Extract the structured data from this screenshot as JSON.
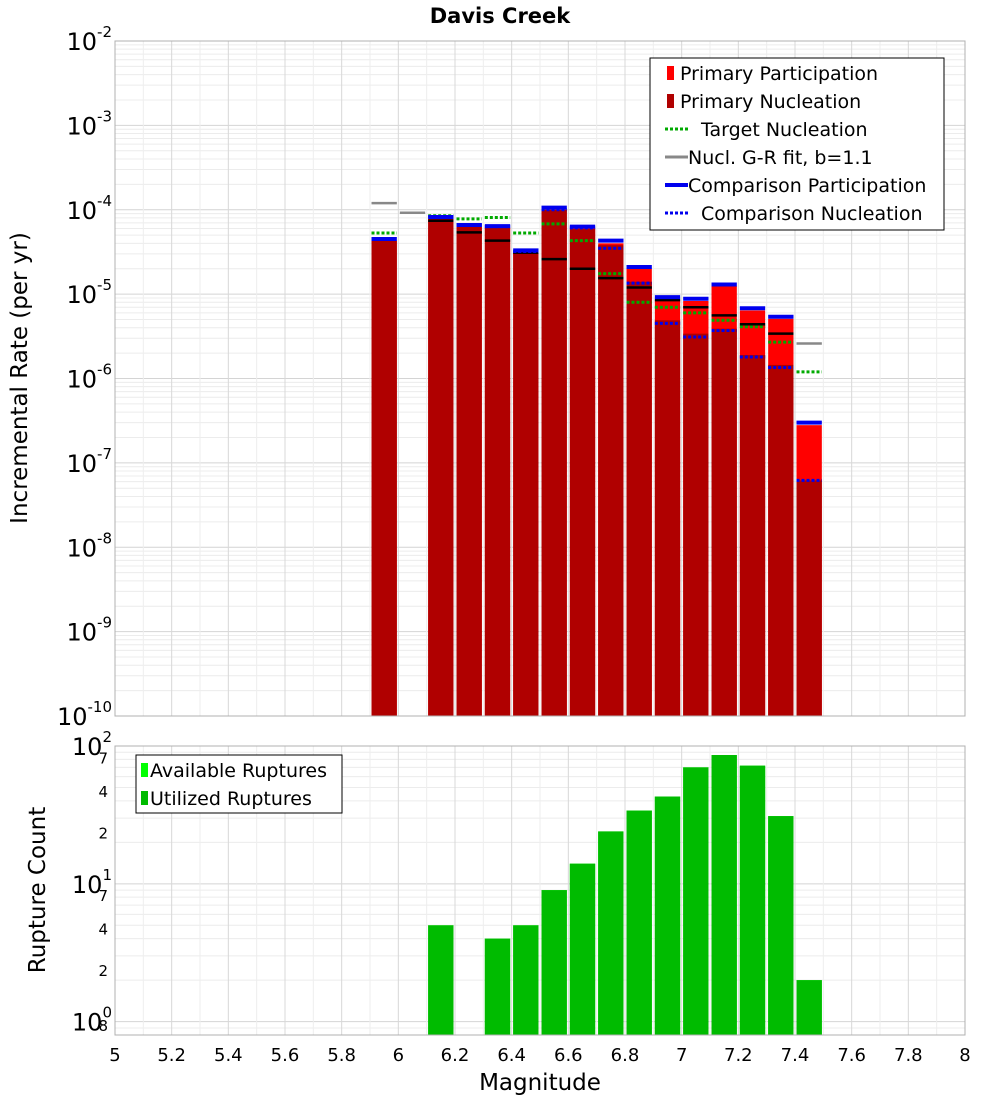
{
  "chart_data": [
    {
      "type": "bar",
      "title": "Davis Creek",
      "xlabel": "Magnitude",
      "ylabel": "Incremental Rate (per yr)",
      "x_scale": "linear",
      "y_scale": "log",
      "xlim": [
        5,
        8
      ],
      "ylim": [
        1e-10,
        0.01
      ],
      "grid": true,
      "legend_position": "top-right",
      "x_ticks": [
        "5",
        "5.2",
        "5.4",
        "5.6",
        "5.8",
        "6",
        "6.2",
        "6.4",
        "6.6",
        "6.8",
        "7",
        "7.2",
        "7.4",
        "7.6",
        "7.8",
        "8"
      ],
      "y_ticks": [
        {
          "base": "10",
          "exp": "-2"
        },
        {
          "base": "10",
          "exp": "-3"
        },
        {
          "base": "10",
          "exp": "-4"
        },
        {
          "base": "10",
          "exp": "-5"
        },
        {
          "base": "10",
          "exp": "-6"
        },
        {
          "base": "10",
          "exp": "-7"
        },
        {
          "base": "10",
          "exp": "-8"
        },
        {
          "base": "10",
          "exp": "-9"
        },
        {
          "base": "10",
          "exp": "-10"
        }
      ],
      "bin_width": 0.1,
      "series": [
        {
          "name": "Primary Participation",
          "style": "bar",
          "color": "#ff0000",
          "x": [
            5.95,
            6.15,
            6.25,
            6.35,
            6.45,
            6.55,
            6.65,
            6.75,
            6.85,
            6.95,
            7.05,
            7.15,
            7.25,
            7.35,
            7.45
          ],
          "values": [
            4.3e-05,
            7.8e-05,
            6.3e-05,
            6.1e-05,
            3.1e-05,
            0.0001,
            6e-05,
            4e-05,
            2e-05,
            8.6e-06,
            8.3e-06,
            1.25e-05,
            6.4e-06,
            5.1e-06,
            2.8e-07
          ]
        },
        {
          "name": "Primary Nucleation",
          "style": "bar",
          "color": "#b00000",
          "x": [
            5.95,
            6.15,
            6.25,
            6.35,
            6.45,
            6.55,
            6.65,
            6.75,
            6.85,
            6.95,
            7.05,
            7.15,
            7.25,
            7.35,
            7.45
          ],
          "values": [
            4.3e-05,
            7.8e-05,
            6.3e-05,
            6.1e-05,
            3.1e-05,
            0.0001,
            5.9e-05,
            3.8e-05,
            1.4e-05,
            4.9e-06,
            3.4e-06,
            3.9e-06,
            1.9e-06,
            1.45e-06,
            6.2e-08
          ]
        },
        {
          "name": "Target Nucleation",
          "style": "dotted",
          "color": "#00aa00",
          "x": [
            5.95,
            6.15,
            6.25,
            6.35,
            6.45,
            6.55,
            6.65,
            6.75,
            6.85,
            6.95,
            7.05,
            7.15,
            7.25,
            7.35,
            7.45
          ],
          "values": [
            5.3e-05,
            8.5e-05,
            7.8e-05,
            8.1e-05,
            5.3e-05,
            6.8e-05,
            4.3e-05,
            1.75e-05,
            8e-06,
            7e-06,
            6e-06,
            4.9e-06,
            4.1e-06,
            2.7e-06,
            1.2e-06
          ]
        },
        {
          "name": "Nucl. G-R fit, b=1.1",
          "style": "solid",
          "color": "#888888",
          "x": [
            5.95,
            6.05
          ],
          "values": [
            0.00012,
            9.2e-05
          ]
        },
        {
          "name": "Nucl. G-R fit, b=1.1",
          "style": "solid",
          "color": "#000000",
          "x": [
            6.15,
            6.25,
            6.35,
            6.45,
            6.55,
            6.65,
            6.75,
            6.85,
            6.95,
            7.05,
            7.15,
            7.25,
            7.35
          ],
          "values": [
            7.4e-05,
            5.4e-05,
            4.3e-05,
            3.1e-05,
            2.6e-05,
            2e-05,
            1.55e-05,
            1.2e-05,
            8.5e-06,
            7e-06,
            5.6e-06,
            4.4e-06,
            3.4e-06
          ]
        },
        {
          "name": "Nucl. G-R fit, b=1.1",
          "style": "solid",
          "color": "#888888",
          "x": [
            7.45
          ],
          "values": [
            2.6e-06
          ]
        },
        {
          "name": "Comparison Participation",
          "style": "solid",
          "color": "#0000ee",
          "x": [
            5.95,
            6.15,
            6.25,
            6.35,
            6.45,
            6.55,
            6.65,
            6.75,
            6.85,
            6.95,
            7.05,
            7.15,
            7.25,
            7.35,
            7.45
          ],
          "values": [
            4.5e-05,
            8.2e-05,
            6.6e-05,
            6.4e-05,
            3.3e-05,
            0.000106,
            6.3e-05,
            4.3e-05,
            2.1e-05,
            9.2e-06,
            8.8e-06,
            1.3e-05,
            6.8e-06,
            5.4e-06,
            3e-07
          ]
        },
        {
          "name": "Comparison Nucleation",
          "style": "dotted",
          "color": "#0000ee",
          "x": [
            6.15,
            6.25,
            6.35,
            6.45,
            6.55,
            6.65,
            6.75,
            6.85,
            6.95,
            7.05,
            7.15,
            7.25,
            7.35,
            7.45
          ],
          "values": [
            8.2e-05,
            6.6e-05,
            6.3e-05,
            3.2e-05,
            0.0001,
            6.1e-05,
            3.5e-05,
            1.35e-05,
            4.5e-06,
            3.1e-06,
            3.7e-06,
            1.8e-06,
            1.35e-06,
            6.2e-08
          ]
        }
      ],
      "legend": [
        {
          "label": "Primary Participation",
          "symbol": "bar",
          "color": "#ff0000"
        },
        {
          "label": "Primary Nucleation",
          "symbol": "bar",
          "color": "#b00000"
        },
        {
          "label": "Target Nucleation",
          "symbol": "dotted",
          "color": "#00aa00"
        },
        {
          "label": "Nucl. G-R fit, b=1.1",
          "symbol": "solid",
          "color": "#888888"
        },
        {
          "label": "Comparison Participation",
          "symbol": "thick",
          "color": "#0000ee"
        },
        {
          "label": "Comparison Nucleation",
          "symbol": "dotted",
          "color": "#0000ee"
        }
      ]
    },
    {
      "type": "bar",
      "title": "",
      "xlabel": "Magnitude",
      "ylabel": "Rupture Count",
      "x_scale": "linear",
      "y_scale": "log",
      "xlim": [
        5,
        8
      ],
      "ylim": [
        0.8,
        100
      ],
      "grid": true,
      "legend_position": "top-left",
      "x_ticks": [
        "5",
        "5.2",
        "5.4",
        "5.6",
        "5.8",
        "6",
        "6.2",
        "6.4",
        "6.6",
        "6.8",
        "7",
        "7.2",
        "7.4",
        "7.6",
        "7.8",
        "8"
      ],
      "y_major_ticks": [
        {
          "value": 100,
          "base": "10",
          "exp": "2"
        },
        {
          "value": 10,
          "base": "10",
          "exp": "1"
        },
        {
          "value": 1,
          "base": "10",
          "exp": "0"
        }
      ],
      "y_minor_ticks": [
        {
          "value": 70,
          "label": "7"
        },
        {
          "value": 40,
          "label": "4"
        },
        {
          "value": 20,
          "label": "2"
        },
        {
          "value": 7,
          "label": "7"
        },
        {
          "value": 4,
          "label": "4"
        },
        {
          "value": 2,
          "label": "2"
        },
        {
          "value": 0.8,
          "label": "8"
        }
      ],
      "bin_width": 0.1,
      "series": [
        {
          "name": "Available Ruptures",
          "style": "bar",
          "color": "#00ff00",
          "x": [
            6.15,
            6.35,
            6.45,
            6.55,
            6.65,
            6.75,
            6.85,
            6.95,
            7.05,
            7.15,
            7.25,
            7.35,
            7.45
          ],
          "values": [
            5,
            4,
            5,
            9,
            14,
            24,
            34,
            43,
            70,
            86,
            72,
            31,
            2
          ]
        },
        {
          "name": "Utilized Ruptures",
          "style": "bar",
          "color": "#00bb00",
          "x": [
            6.15,
            6.35,
            6.45,
            6.55,
            6.65,
            6.75,
            6.85,
            6.95,
            7.05,
            7.15,
            7.25,
            7.35,
            7.45
          ],
          "values": [
            5,
            4,
            5,
            9,
            14,
            24,
            34,
            43,
            70,
            86,
            72,
            31,
            2
          ]
        }
      ],
      "legend": [
        {
          "label": "Available Ruptures",
          "symbol": "bar",
          "color": "#00ff00"
        },
        {
          "label": "Utilized Ruptures",
          "symbol": "bar",
          "color": "#00bb00"
        }
      ]
    }
  ]
}
